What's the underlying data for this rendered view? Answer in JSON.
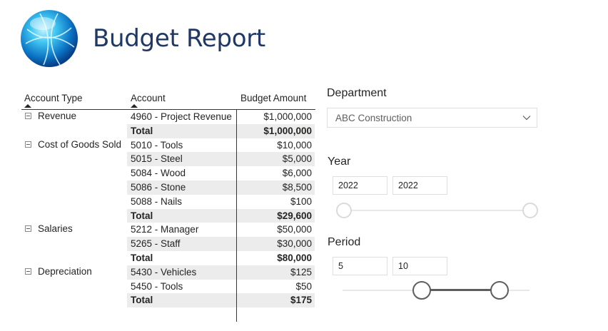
{
  "header": {
    "title": "Budget Report",
    "logo_icon": "globe-icon"
  },
  "matrix": {
    "columns": [
      "Account Type",
      "Account",
      "Budget Amount"
    ],
    "rows": [
      {
        "type": "Revenue",
        "account": "4960 - Project Revenue",
        "amount": "$1,000,000",
        "total": false
      },
      {
        "type": "",
        "account": "Total",
        "amount": "$1,000,000",
        "total": true
      },
      {
        "type": "Cost of Goods Sold",
        "account": "5010 - Tools",
        "amount": "$10,000",
        "total": false
      },
      {
        "type": "",
        "account": "5015 - Steel",
        "amount": "$5,000",
        "total": false
      },
      {
        "type": "",
        "account": "5084 - Wood",
        "amount": "$6,000",
        "total": false
      },
      {
        "type": "",
        "account": "5086 - Stone",
        "amount": "$8,500",
        "total": false
      },
      {
        "type": "",
        "account": "5088 - Nails",
        "amount": "$100",
        "total": false
      },
      {
        "type": "",
        "account": "Total",
        "amount": "$29,600",
        "total": true
      },
      {
        "type": "Salaries",
        "account": "5212 - Manager",
        "amount": "$50,000",
        "total": false
      },
      {
        "type": "",
        "account": "5265 - Staff",
        "amount": "$30,000",
        "total": false
      },
      {
        "type": "",
        "account": "Total",
        "amount": "$80,000",
        "total": true
      },
      {
        "type": "Depreciation",
        "account": "5430 - Vehicles",
        "amount": "$125",
        "total": false
      },
      {
        "type": "",
        "account": "5450 - Tools",
        "amount": "$50",
        "total": false
      },
      {
        "type": "",
        "account": "Total",
        "amount": "$175",
        "total": true
      }
    ]
  },
  "department": {
    "label": "Department",
    "selected": "ABC Construction"
  },
  "year": {
    "label": "Year",
    "from": "2022",
    "to": "2022"
  },
  "period": {
    "label": "Period",
    "from": "5",
    "to": "10"
  }
}
